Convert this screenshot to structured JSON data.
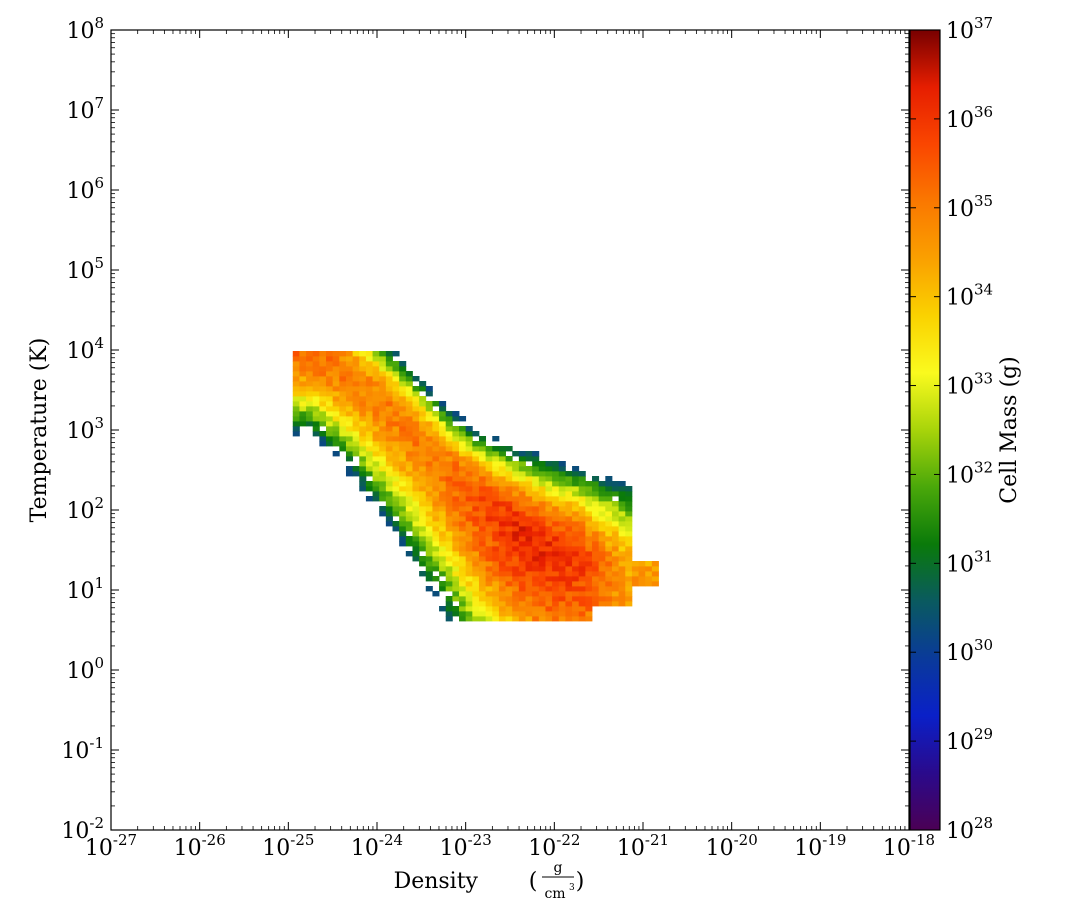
{
  "chart_data": {
    "type": "heatmap",
    "title": "",
    "xlabel": "Density",
    "xunit_num": "g",
    "xunit_den": "cm",
    "xunit_den_exp": "3",
    "ylabel": "Temperature (K)",
    "colorbar_label": "Cell Mass (g)",
    "xscale": "log",
    "yscale": "log",
    "xlim": [
      1e-27,
      1e-18
    ],
    "ylim": [
      0.01,
      100000000.0
    ],
    "clim": [
      1e+28,
      1e+37
    ],
    "x_ticks": [
      {
        "base": "10",
        "exp": "-27"
      },
      {
        "base": "10",
        "exp": "-26"
      },
      {
        "base": "10",
        "exp": "-25"
      },
      {
        "base": "10",
        "exp": "-24"
      },
      {
        "base": "10",
        "exp": "-23"
      },
      {
        "base": "10",
        "exp": "-22"
      },
      {
        "base": "10",
        "exp": "-21"
      },
      {
        "base": "10",
        "exp": "-20"
      },
      {
        "base": "10",
        "exp": "-19"
      },
      {
        "base": "10",
        "exp": "-18"
      }
    ],
    "y_ticks": [
      {
        "base": "10",
        "exp": "-2"
      },
      {
        "base": "10",
        "exp": "-1"
      },
      {
        "base": "10",
        "exp": "0"
      },
      {
        "base": "10",
        "exp": "1"
      },
      {
        "base": "10",
        "exp": "2"
      },
      {
        "base": "10",
        "exp": "3"
      },
      {
        "base": "10",
        "exp": "4"
      },
      {
        "base": "10",
        "exp": "5"
      },
      {
        "base": "10",
        "exp": "6"
      },
      {
        "base": "10",
        "exp": "7"
      },
      {
        "base": "10",
        "exp": "8"
      }
    ],
    "colorbar_ticks": [
      {
        "base": "10",
        "exp": "28"
      },
      {
        "base": "10",
        "exp": "29"
      },
      {
        "base": "10",
        "exp": "30"
      },
      {
        "base": "10",
        "exp": "31"
      },
      {
        "base": "10",
        "exp": "32"
      },
      {
        "base": "10",
        "exp": "33"
      },
      {
        "base": "10",
        "exp": "34"
      },
      {
        "base": "10",
        "exp": "35"
      },
      {
        "base": "10",
        "exp": "36"
      },
      {
        "base": "10",
        "exp": "37"
      }
    ],
    "colormap": [
      "#4b0055",
      "#2a0a8c",
      "#0a20c8",
      "#0a3a9a",
      "#0a5a60",
      "#0a7a0a",
      "#4aa80a",
      "#a8d40a",
      "#fafa1e",
      "#fad200",
      "#faa000",
      "#fa7800",
      "#fa4600",
      "#e61e00",
      "#780000"
    ],
    "grid": false,
    "distribution_ridge": {
      "description_free_knots_log_rho": [
        -24.75,
        -24.3,
        -23.8,
        -23.3,
        -22.8,
        -22.5,
        -22.2,
        -21.7,
        -21.2
      ],
      "log_T": [
        3.95,
        3.65,
        3.15,
        2.55,
        2.02,
        1.78,
        1.55,
        1.3,
        1.1
      ],
      "log_mass_peak": [
        35.2,
        35.0,
        35.0,
        35.1,
        35.8,
        36.1,
        36.2,
        35.8,
        34.5
      ]
    }
  }
}
